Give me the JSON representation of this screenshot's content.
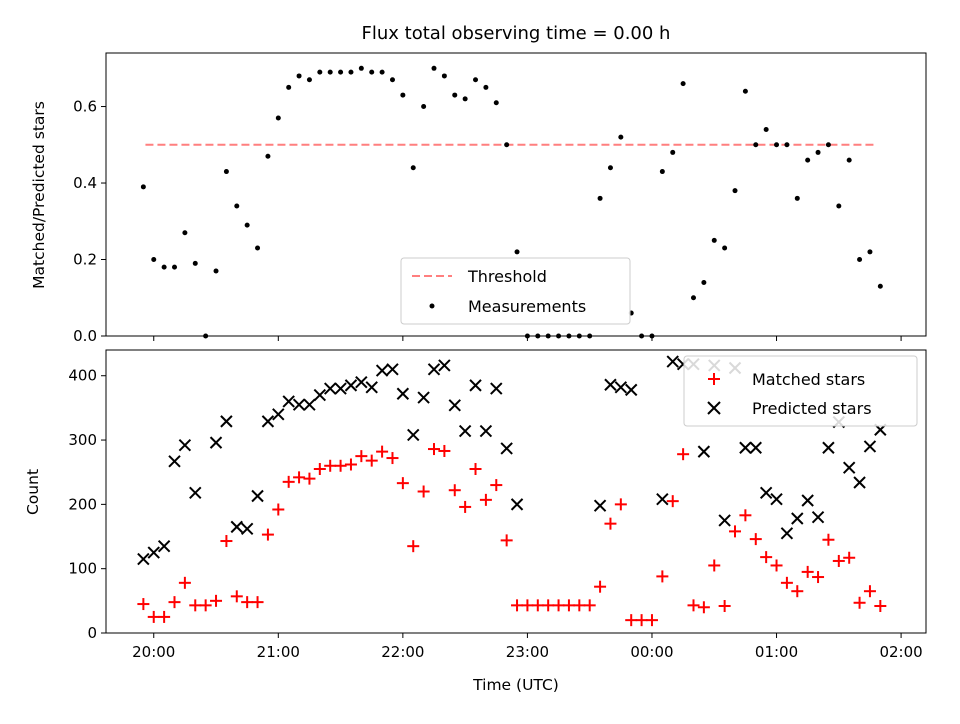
{
  "chart_data": [
    {
      "type": "scatter",
      "title": "Flux total observing time = 0.00 h",
      "xlabel": "",
      "ylabel": "Matched/Predicted stars",
      "ylim": [
        0,
        0.74
      ],
      "yticks": [
        0.0,
        0.2,
        0.4,
        0.6
      ],
      "ytick_labels": [
        "0.0",
        "0.2",
        "0.4",
        "0.6"
      ],
      "legend_position": "bottom-center",
      "threshold": {
        "name": "Threshold",
        "value": 0.5,
        "x_start": "19:56",
        "x_end": "01:48",
        "color": "#ff7f7f"
      },
      "series": [
        {
          "name": "Measurements",
          "color": "#000000",
          "points": [
            [
              "19:55",
              0.39
            ],
            [
              "20:00",
              0.2
            ],
            [
              "20:05",
              0.18
            ],
            [
              "20:10",
              0.18
            ],
            [
              "20:15",
              0.27
            ],
            [
              "20:20",
              0.19
            ],
            [
              "20:25",
              0.0
            ],
            [
              "20:30",
              0.17
            ],
            [
              "20:35",
              0.43
            ],
            [
              "20:40",
              0.34
            ],
            [
              "20:45",
              0.29
            ],
            [
              "20:50",
              0.23
            ],
            [
              "20:55",
              0.47
            ],
            [
              "21:00",
              0.57
            ],
            [
              "21:05",
              0.65
            ],
            [
              "21:10",
              0.68
            ],
            [
              "21:15",
              0.67
            ],
            [
              "21:20",
              0.69
            ],
            [
              "21:25",
              0.69
            ],
            [
              "21:30",
              0.69
            ],
            [
              "21:35",
              0.69
            ],
            [
              "21:40",
              0.7
            ],
            [
              "21:45",
              0.69
            ],
            [
              "21:50",
              0.69
            ],
            [
              "21:55",
              0.67
            ],
            [
              "22:00",
              0.63
            ],
            [
              "22:05",
              0.44
            ],
            [
              "22:10",
              0.6
            ],
            [
              "22:15",
              0.7
            ],
            [
              "22:20",
              0.68
            ],
            [
              "22:25",
              0.63
            ],
            [
              "22:30",
              0.62
            ],
            [
              "22:35",
              0.67
            ],
            [
              "22:40",
              0.65
            ],
            [
              "22:45",
              0.61
            ],
            [
              "22:50",
              0.5
            ],
            [
              "22:55",
              0.22
            ],
            [
              "23:00",
              0.0
            ],
            [
              "23:05",
              0.0
            ],
            [
              "23:10",
              0.0
            ],
            [
              "23:15",
              0.0
            ],
            [
              "23:20",
              0.0
            ],
            [
              "23:25",
              0.0
            ],
            [
              "23:30",
              0.0
            ],
            [
              "23:35",
              0.36
            ],
            [
              "23:40",
              0.44
            ],
            [
              "23:45",
              0.52
            ],
            [
              "23:50",
              0.06
            ],
            [
              "23:55",
              0.0
            ],
            [
              "00:00",
              0.0
            ],
            [
              "00:05",
              0.43
            ],
            [
              "00:10",
              0.48
            ],
            [
              "00:15",
              0.66
            ],
            [
              "00:20",
              0.1
            ],
            [
              "00:25",
              0.14
            ],
            [
              "00:30",
              0.25
            ],
            [
              "00:35",
              0.23
            ],
            [
              "00:40",
              0.38
            ],
            [
              "00:45",
              0.64
            ],
            [
              "00:50",
              0.5
            ],
            [
              "00:55",
              0.54
            ],
            [
              "01:00",
              0.5
            ],
            [
              "01:05",
              0.5
            ],
            [
              "01:10",
              0.36
            ],
            [
              "01:15",
              0.46
            ],
            [
              "01:20",
              0.48
            ],
            [
              "01:25",
              0.5
            ],
            [
              "01:30",
              0.34
            ],
            [
              "01:35",
              0.46
            ],
            [
              "01:40",
              0.2
            ],
            [
              "01:45",
              0.22
            ],
            [
              "01:50",
              0.13
            ]
          ]
        }
      ]
    },
    {
      "type": "scatter",
      "title": "",
      "xlabel": "Time (UTC)",
      "ylabel": "Count",
      "ylim": [
        0,
        440
      ],
      "yticks": [
        0,
        100,
        200,
        300,
        400
      ],
      "ytick_labels": [
        "0",
        "100",
        "200",
        "300",
        "400"
      ],
      "xlim": [
        "19:37",
        "02:12"
      ],
      "xticks": [
        "20:00",
        "21:00",
        "22:00",
        "23:00",
        "00:00",
        "01:00",
        "02:00"
      ],
      "xtick_labels": [
        "20:00",
        "21:00",
        "22:00",
        "23:00",
        "00:00",
        "01:00",
        "02:00"
      ],
      "legend_position": "top-right",
      "series": [
        {
          "name": "Matched stars",
          "marker": "plus",
          "color": "#ff0000",
          "points": [
            [
              "19:55",
              45
            ],
            [
              "20:00",
              25
            ],
            [
              "20:05",
              25
            ],
            [
              "20:10",
              48
            ],
            [
              "20:15",
              78
            ],
            [
              "20:20",
              43
            ],
            [
              "20:25",
              43
            ],
            [
              "20:30",
              50
            ],
            [
              "20:35",
              143
            ],
            [
              "20:40",
              57
            ],
            [
              "20:45",
              48
            ],
            [
              "20:50",
              48
            ],
            [
              "20:55",
              153
            ],
            [
              "21:00",
              192
            ],
            [
              "21:05",
              235
            ],
            [
              "21:10",
              242
            ],
            [
              "21:15",
              240
            ],
            [
              "21:20",
              255
            ],
            [
              "21:25",
              260
            ],
            [
              "21:30",
              260
            ],
            [
              "21:35",
              262
            ],
            [
              "21:40",
              275
            ],
            [
              "21:45",
              268
            ],
            [
              "21:50",
              282
            ],
            [
              "21:55",
              272
            ],
            [
              "22:00",
              233
            ],
            [
              "22:05",
              135
            ],
            [
              "22:10",
              220
            ],
            [
              "22:15",
              286
            ],
            [
              "22:20",
              283
            ],
            [
              "22:25",
              222
            ],
            [
              "22:30",
              196
            ],
            [
              "22:35",
              255
            ],
            [
              "22:40",
              207
            ],
            [
              "22:45",
              230
            ],
            [
              "22:50",
              144
            ],
            [
              "22:55",
              43
            ],
            [
              "23:00",
              43
            ],
            [
              "23:05",
              43
            ],
            [
              "23:10",
              43
            ],
            [
              "23:15",
              43
            ],
            [
              "23:20",
              43
            ],
            [
              "23:25",
              43
            ],
            [
              "23:30",
              43
            ],
            [
              "23:35",
              72
            ],
            [
              "23:40",
              170
            ],
            [
              "23:45",
              200
            ],
            [
              "23:50",
              20
            ],
            [
              "23:55",
              20
            ],
            [
              "00:00",
              20
            ],
            [
              "00:05",
              88
            ],
            [
              "00:10",
              205
            ],
            [
              "00:15",
              278
            ],
            [
              "00:20",
              43
            ],
            [
              "00:25",
              40
            ],
            [
              "00:30",
              105
            ],
            [
              "00:35",
              42
            ],
            [
              "00:40",
              158
            ],
            [
              "00:45",
              183
            ],
            [
              "00:50",
              146
            ],
            [
              "00:55",
              118
            ],
            [
              "01:00",
              105
            ],
            [
              "01:05",
              78
            ],
            [
              "01:10",
              65
            ],
            [
              "01:15",
              95
            ],
            [
              "01:20",
              87
            ],
            [
              "01:25",
              145
            ],
            [
              "01:30",
              112
            ],
            [
              "01:35",
              117
            ],
            [
              "01:40",
              47
            ],
            [
              "01:45",
              65
            ],
            [
              "01:50",
              42
            ]
          ]
        },
        {
          "name": "Predicted stars",
          "marker": "x",
          "color": "#000000",
          "points": [
            [
              "19:55",
              115
            ],
            [
              "20:00",
              125
            ],
            [
              "20:05",
              135
            ],
            [
              "20:10",
              267
            ],
            [
              "20:15",
              292
            ],
            [
              "20:20",
              218
            ],
            [
              "20:30",
              296
            ],
            [
              "20:35",
              329
            ],
            [
              "20:40",
              165
            ],
            [
              "20:45",
              162
            ],
            [
              "20:50",
              213
            ],
            [
              "20:55",
              329
            ],
            [
              "21:00",
              340
            ],
            [
              "21:05",
              360
            ],
            [
              "21:10",
              355
            ],
            [
              "21:15",
              355
            ],
            [
              "21:20",
              370
            ],
            [
              "21:25",
              380
            ],
            [
              "21:30",
              380
            ],
            [
              "21:35",
              385
            ],
            [
              "21:40",
              390
            ],
            [
              "21:45",
              382
            ],
            [
              "21:50",
              408
            ],
            [
              "21:55",
              410
            ],
            [
              "22:00",
              372
            ],
            [
              "22:05",
              308
            ],
            [
              "22:10",
              366
            ],
            [
              "22:15",
              410
            ],
            [
              "22:20",
              416
            ],
            [
              "22:25",
              354
            ],
            [
              "22:30",
              314
            ],
            [
              "22:35",
              385
            ],
            [
              "22:40",
              314
            ],
            [
              "22:45",
              380
            ],
            [
              "22:50",
              287
            ],
            [
              "22:55",
              200
            ],
            [
              "23:35",
              198
            ],
            [
              "23:40",
              386
            ],
            [
              "23:45",
              382
            ],
            [
              "23:50",
              378
            ],
            [
              "00:05",
              208
            ],
            [
              "00:10",
              422
            ],
            [
              "00:15",
              418
            ],
            [
              "00:20",
              418
            ],
            [
              "00:25",
              282
            ],
            [
              "00:30",
              416
            ],
            [
              "00:35",
              175
            ],
            [
              "00:40",
              412
            ],
            [
              "00:45",
              288
            ],
            [
              "00:50",
              288
            ],
            [
              "00:55",
              218
            ],
            [
              "01:00",
              208
            ],
            [
              "01:05",
              155
            ],
            [
              "01:10",
              178
            ],
            [
              "01:15",
              206
            ],
            [
              "01:20",
              180
            ],
            [
              "01:25",
              288
            ],
            [
              "01:30",
              328
            ],
            [
              "01:35",
              257
            ],
            [
              "01:40",
              234
            ],
            [
              "01:45",
              290
            ],
            [
              "01:50",
              316
            ]
          ]
        }
      ]
    }
  ]
}
